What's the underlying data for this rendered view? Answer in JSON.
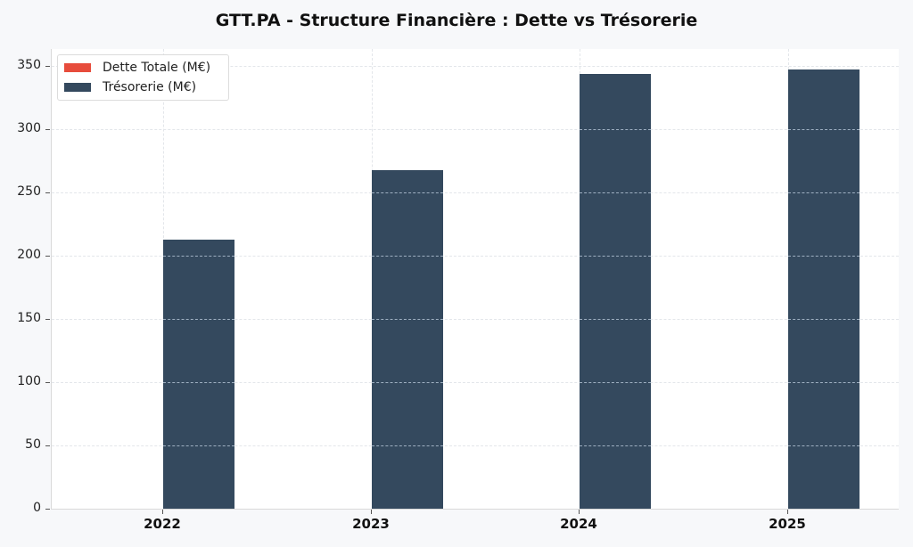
{
  "chart_data": {
    "type": "bar",
    "title": "GTT.PA - Structure Financière : Dette vs Trésorerie",
    "xlabel": "",
    "ylabel": "",
    "categories": [
      "2022",
      "2023",
      "2024",
      "2025"
    ],
    "series": [
      {
        "name": "Dette Totale (M€)",
        "color": "#e74c3c",
        "values": [
          0,
          0,
          0,
          0
        ]
      },
      {
        "name": "Trésorerie (M€)",
        "color": "#34495e",
        "values": [
          212.5,
          267.3,
          343.0,
          346.5
        ]
      }
    ],
    "ylim": [
      0,
      363
    ],
    "yticks": [
      "0",
      "50",
      "100",
      "150",
      "200",
      "250",
      "300",
      "350"
    ],
    "grid": true,
    "legend_position": "upper left"
  }
}
